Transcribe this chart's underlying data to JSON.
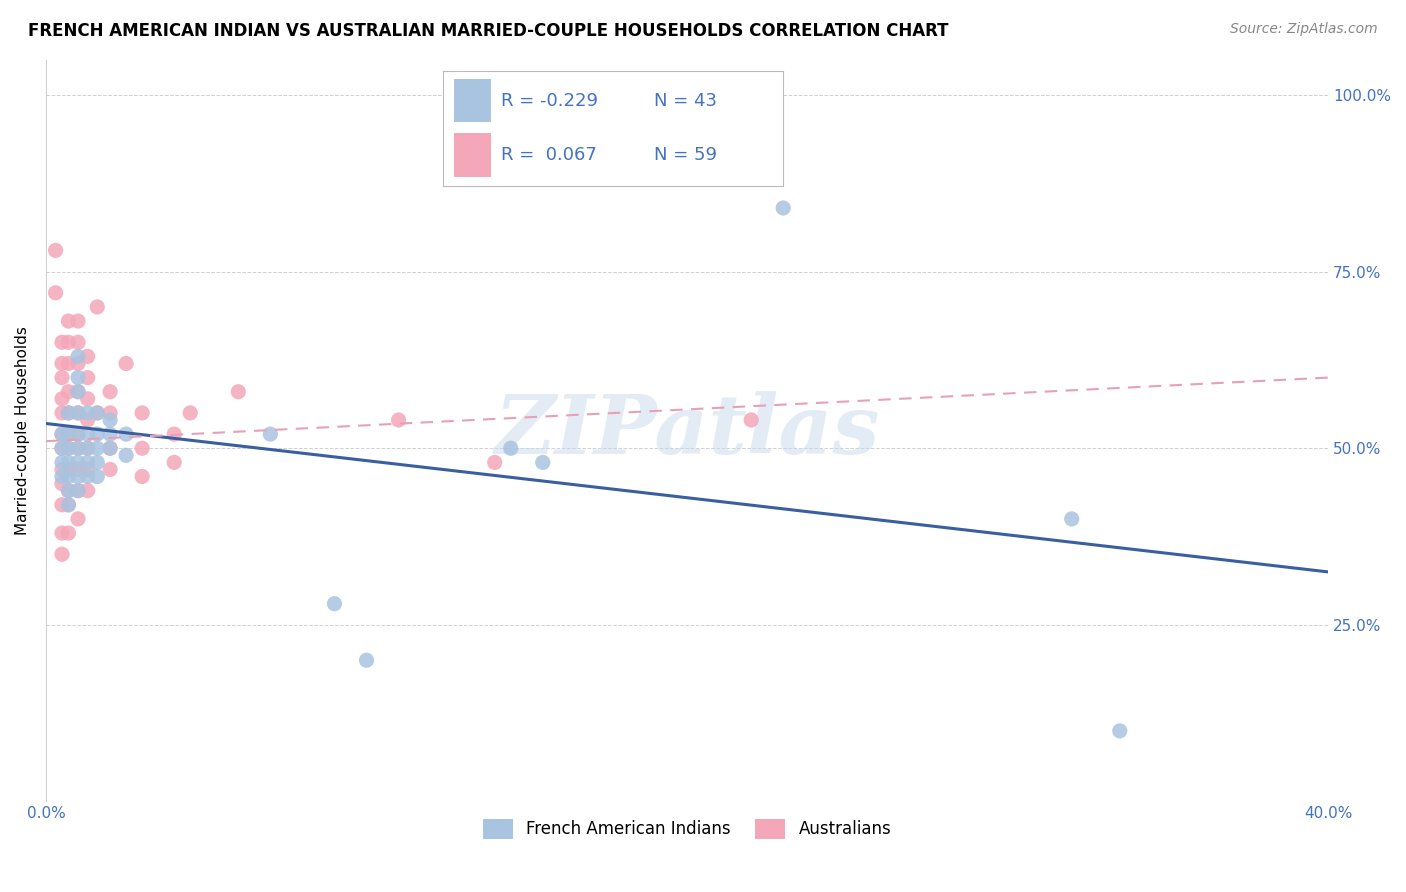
{
  "title": "FRENCH AMERICAN INDIAN VS AUSTRALIAN MARRIED-COUPLE HOUSEHOLDS CORRELATION CHART",
  "source": "Source: ZipAtlas.com",
  "ylabel": "Married-couple Households",
  "ylim": [
    0.0,
    1.05
  ],
  "xlim": [
    0.0,
    0.4
  ],
  "legend_text_color": "#4472c4",
  "legend_label_blue": "French American Indians",
  "legend_label_pink": "Australians",
  "blue_color": "#a8c4e0",
  "pink_color": "#f4a7b9",
  "blue_line_color": "#3a5fa0",
  "pink_line_color": "#e8a0b8",
  "blue_scatter": [
    [
      0.005,
      0.52
    ],
    [
      0.005,
      0.5
    ],
    [
      0.005,
      0.48
    ],
    [
      0.005,
      0.46
    ],
    [
      0.007,
      0.55
    ],
    [
      0.007,
      0.52
    ],
    [
      0.007,
      0.5
    ],
    [
      0.007,
      0.48
    ],
    [
      0.007,
      0.46
    ],
    [
      0.007,
      0.44
    ],
    [
      0.007,
      0.42
    ],
    [
      0.01,
      0.63
    ],
    [
      0.01,
      0.6
    ],
    [
      0.01,
      0.58
    ],
    [
      0.01,
      0.55
    ],
    [
      0.01,
      0.52
    ],
    [
      0.01,
      0.5
    ],
    [
      0.01,
      0.48
    ],
    [
      0.01,
      0.46
    ],
    [
      0.01,
      0.44
    ],
    [
      0.013,
      0.55
    ],
    [
      0.013,
      0.52
    ],
    [
      0.013,
      0.5
    ],
    [
      0.013,
      0.48
    ],
    [
      0.013,
      0.46
    ],
    [
      0.016,
      0.55
    ],
    [
      0.016,
      0.52
    ],
    [
      0.016,
      0.5
    ],
    [
      0.016,
      0.48
    ],
    [
      0.016,
      0.46
    ],
    [
      0.02,
      0.54
    ],
    [
      0.02,
      0.52
    ],
    [
      0.02,
      0.5
    ],
    [
      0.025,
      0.52
    ],
    [
      0.025,
      0.49
    ],
    [
      0.07,
      0.52
    ],
    [
      0.09,
      0.28
    ],
    [
      0.1,
      0.2
    ],
    [
      0.145,
      0.5
    ],
    [
      0.155,
      0.48
    ],
    [
      0.23,
      0.84
    ],
    [
      0.32,
      0.4
    ],
    [
      0.335,
      0.1
    ]
  ],
  "pink_scatter": [
    [
      0.003,
      0.78
    ],
    [
      0.003,
      0.72
    ],
    [
      0.005,
      0.65
    ],
    [
      0.005,
      0.62
    ],
    [
      0.005,
      0.6
    ],
    [
      0.005,
      0.57
    ],
    [
      0.005,
      0.55
    ],
    [
      0.005,
      0.52
    ],
    [
      0.005,
      0.5
    ],
    [
      0.005,
      0.47
    ],
    [
      0.005,
      0.45
    ],
    [
      0.005,
      0.42
    ],
    [
      0.005,
      0.38
    ],
    [
      0.005,
      0.35
    ],
    [
      0.007,
      0.68
    ],
    [
      0.007,
      0.65
    ],
    [
      0.007,
      0.62
    ],
    [
      0.007,
      0.58
    ],
    [
      0.007,
      0.55
    ],
    [
      0.007,
      0.52
    ],
    [
      0.007,
      0.5
    ],
    [
      0.007,
      0.47
    ],
    [
      0.007,
      0.44
    ],
    [
      0.007,
      0.42
    ],
    [
      0.007,
      0.38
    ],
    [
      0.01,
      0.68
    ],
    [
      0.01,
      0.65
    ],
    [
      0.01,
      0.62
    ],
    [
      0.01,
      0.58
    ],
    [
      0.01,
      0.55
    ],
    [
      0.01,
      0.52
    ],
    [
      0.01,
      0.5
    ],
    [
      0.01,
      0.47
    ],
    [
      0.01,
      0.44
    ],
    [
      0.01,
      0.4
    ],
    [
      0.013,
      0.63
    ],
    [
      0.013,
      0.6
    ],
    [
      0.013,
      0.57
    ],
    [
      0.013,
      0.54
    ],
    [
      0.013,
      0.5
    ],
    [
      0.013,
      0.47
    ],
    [
      0.013,
      0.44
    ],
    [
      0.016,
      0.7
    ],
    [
      0.016,
      0.55
    ],
    [
      0.02,
      0.58
    ],
    [
      0.02,
      0.55
    ],
    [
      0.02,
      0.5
    ],
    [
      0.02,
      0.47
    ],
    [
      0.025,
      0.62
    ],
    [
      0.03,
      0.55
    ],
    [
      0.03,
      0.5
    ],
    [
      0.03,
      0.46
    ],
    [
      0.04,
      0.52
    ],
    [
      0.04,
      0.48
    ],
    [
      0.045,
      0.55
    ],
    [
      0.06,
      0.58
    ],
    [
      0.11,
      0.54
    ],
    [
      0.14,
      0.48
    ],
    [
      0.22,
      0.54
    ]
  ],
  "blue_trend_x": [
    0.0,
    0.4
  ],
  "blue_trend_y": [
    0.535,
    0.325
  ],
  "pink_trend_x": [
    0.0,
    0.4
  ],
  "pink_trend_y": [
    0.51,
    0.6
  ],
  "watermark": "ZIPatlas",
  "title_fontsize": 12,
  "source_fontsize": 10,
  "axis_label_fontsize": 11,
  "tick_fontsize": 11,
  "legend_fontsize": 13
}
